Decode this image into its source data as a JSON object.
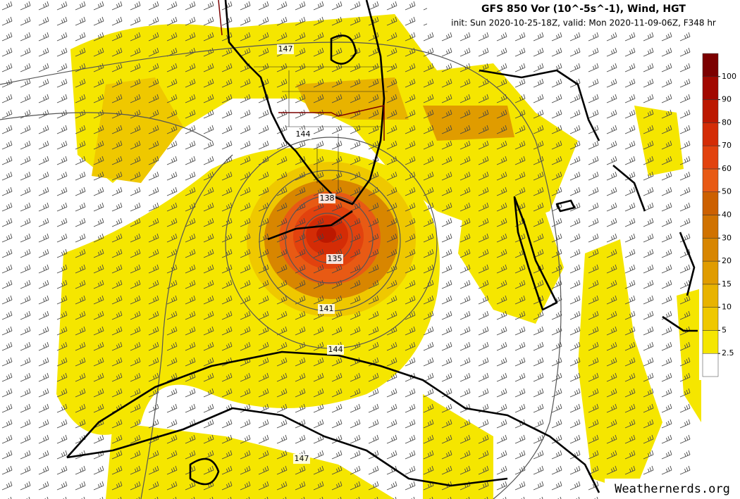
{
  "header": {
    "title": "GFS 850 Vor (10^-5s^-1), Wind, HGT",
    "subtitle": "init: Sun 2020-10-25-18Z, valid: Mon 2020-11-09-06Z, F348 hr"
  },
  "colorbar": {
    "levels": [
      2.5,
      5,
      10,
      15,
      20,
      30,
      40,
      50,
      60,
      70,
      80,
      90,
      100
    ],
    "colors": [
      "#ffffff",
      "#f5e600",
      "#efc800",
      "#e8b300",
      "#e09c00",
      "#d88600",
      "#d07200",
      "#cc6000",
      "#e85a14",
      "#e2420e",
      "#d42c06",
      "#bc1800",
      "#a20800",
      "#7c0000"
    ]
  },
  "contour_labels": [
    147,
    144,
    138,
    135,
    141,
    144,
    147
  ],
  "watermark": "Weathernerds.org"
}
